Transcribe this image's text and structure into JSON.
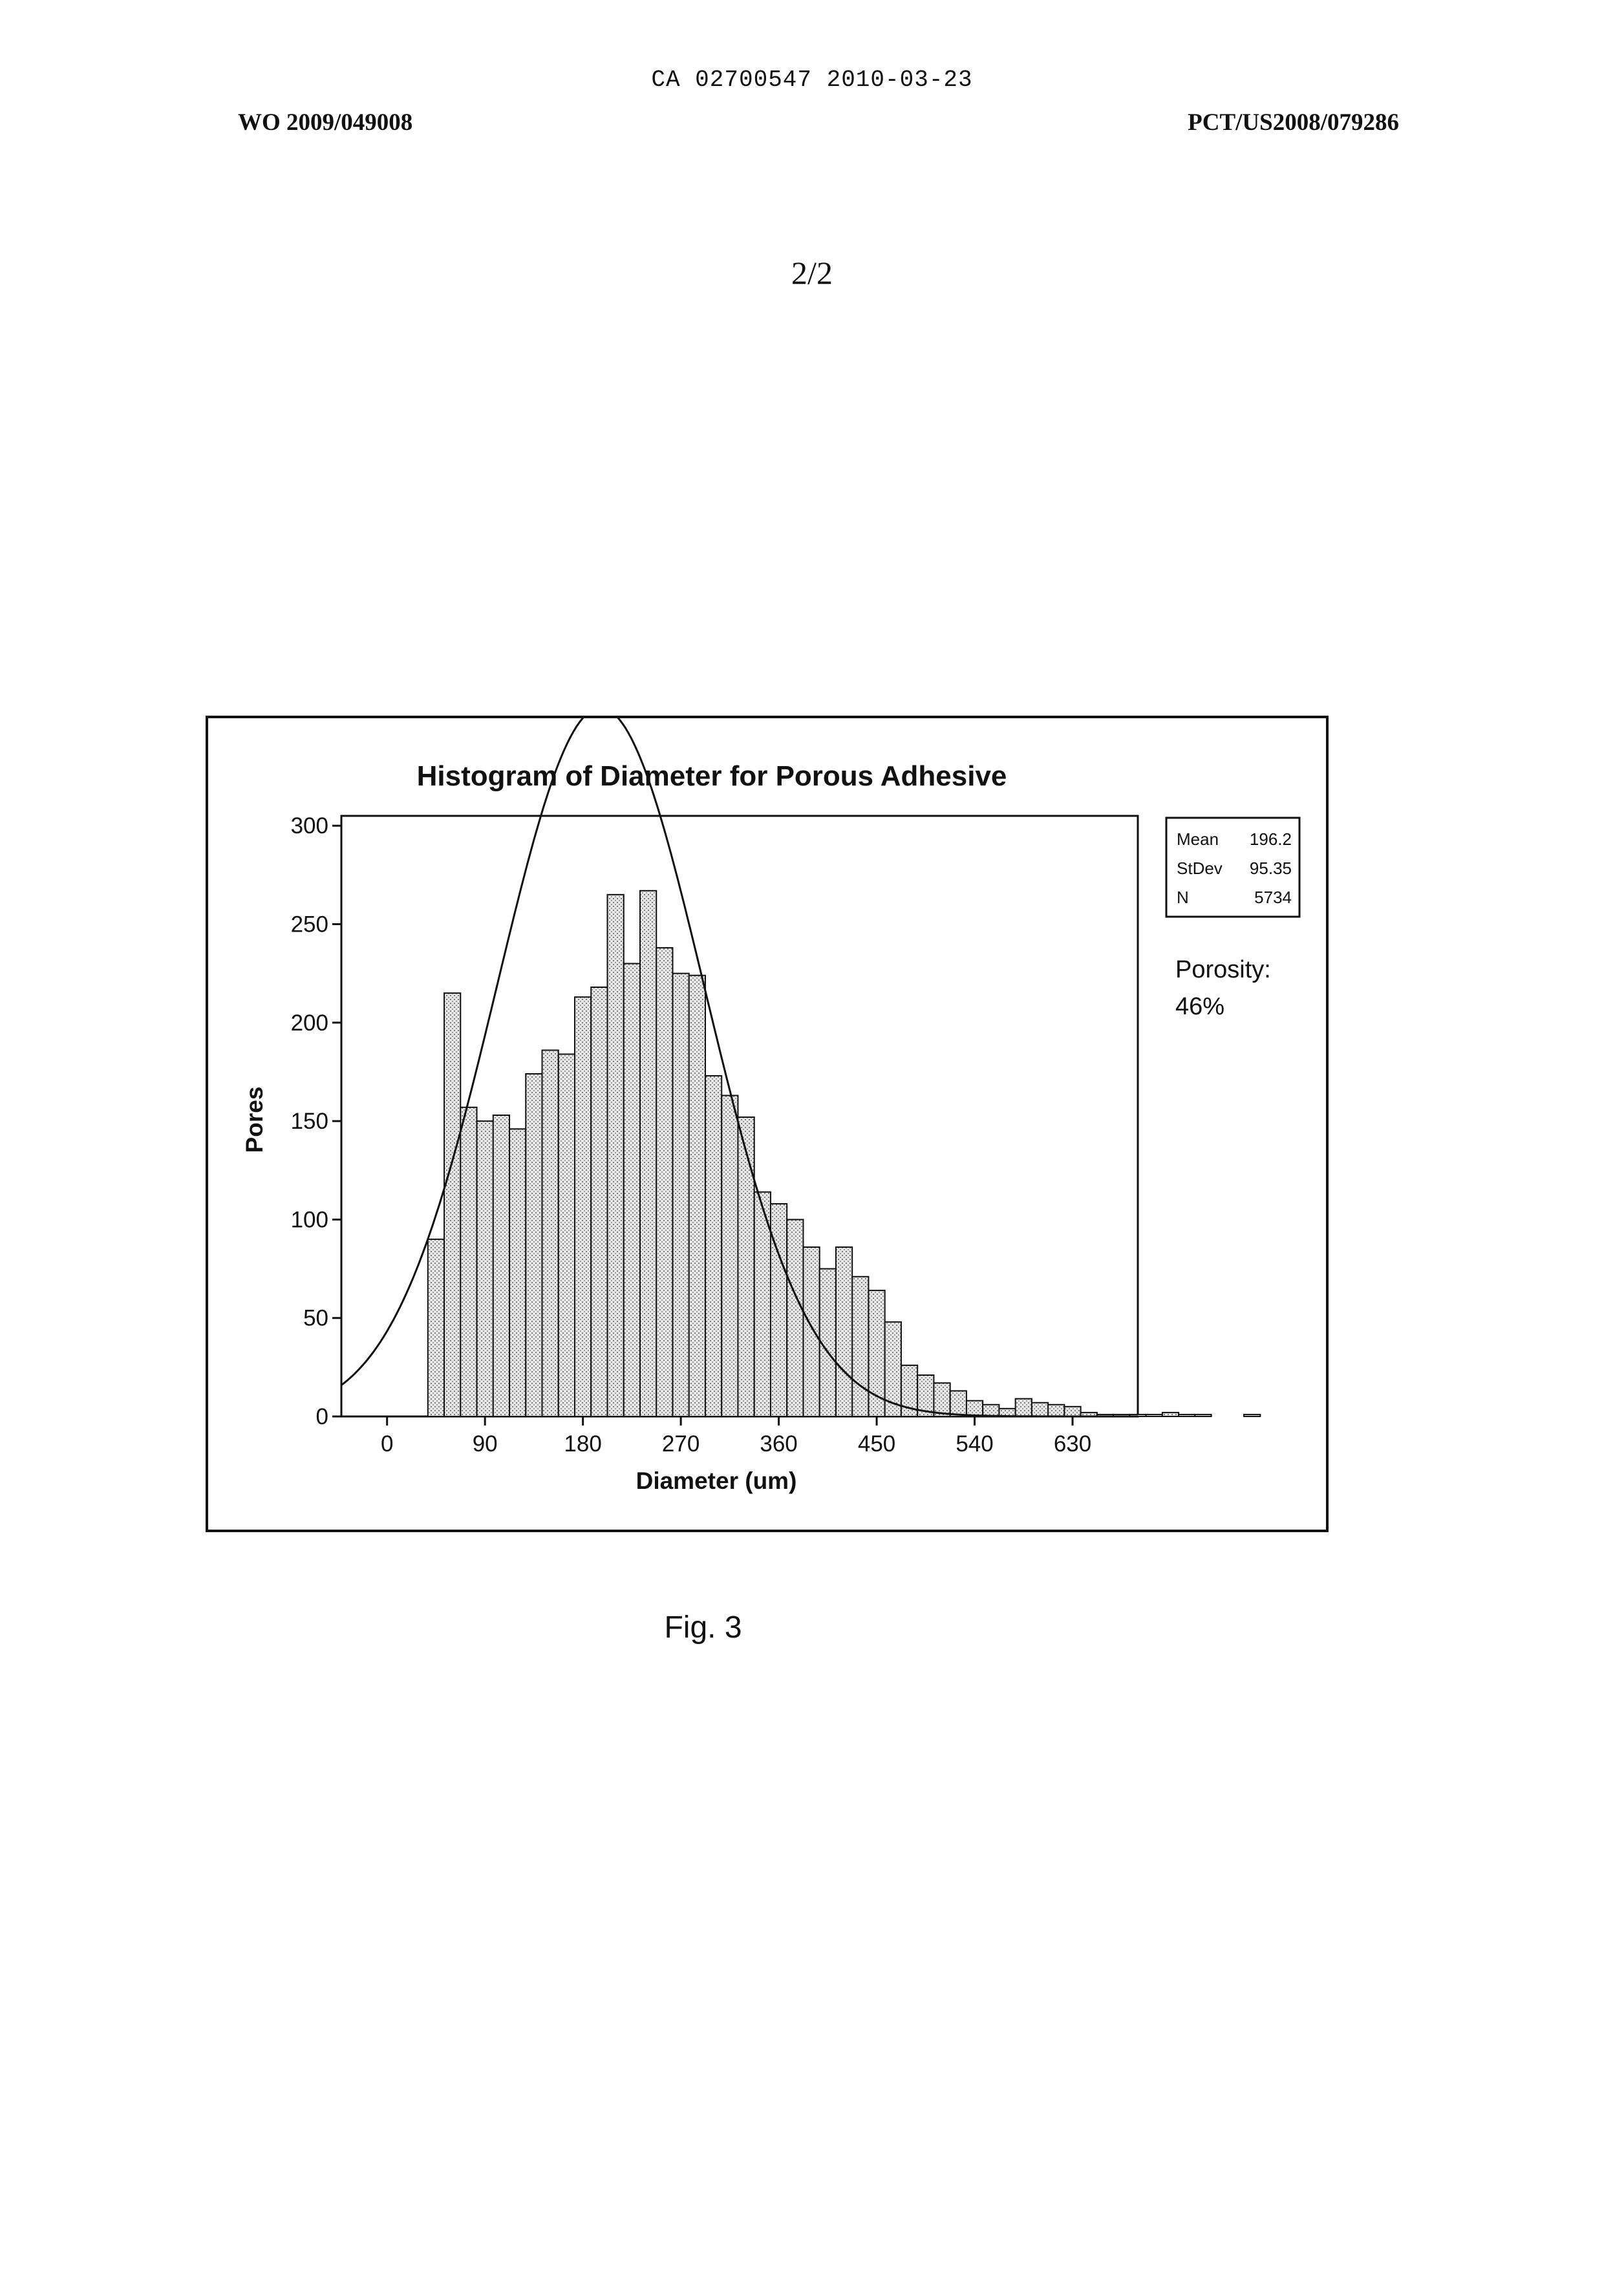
{
  "header": {
    "center_id": "CA 02700547 2010-03-23",
    "left_pub": "WO 2009/049008",
    "right_app": "PCT/US2008/079286"
  },
  "page_number": "2/2",
  "caption": "Fig. 3",
  "chart_data": {
    "type": "bar",
    "title": "Histogram of Diameter for Porous Adhesive",
    "xlabel": "Diameter (um)",
    "ylabel": "Pores",
    "xlim": [
      -42,
      690
    ],
    "ylim": [
      0,
      305
    ],
    "xticks": [
      0,
      90,
      180,
      270,
      360,
      450,
      540,
      630
    ],
    "yticks": [
      0,
      50,
      100,
      150,
      200,
      250,
      300
    ],
    "bin_start": 37.5,
    "bin_width": 15,
    "values": [
      90,
      215,
      157,
      150,
      153,
      146,
      174,
      186,
      184,
      213,
      218,
      265,
      230,
      267,
      238,
      225,
      224,
      173,
      163,
      152,
      114,
      108,
      100,
      86,
      75,
      86,
      71,
      64,
      48,
      26,
      21,
      17,
      13,
      8,
      6,
      4,
      9,
      7,
      6,
      5,
      2,
      1,
      1,
      1,
      1,
      2,
      1,
      1,
      0,
      0,
      1
    ],
    "fit_curve": {
      "type": "normal",
      "mean": 196.2,
      "stdev": 95.35,
      "n": 5734
    },
    "stats_box": {
      "rows": [
        {
          "label": "Mean",
          "value": "196.2"
        },
        {
          "label": "StDev",
          "value": "95.35"
        },
        {
          "label": "N",
          "value": "5734"
        }
      ]
    },
    "annotation": {
      "line1": "Porosity:",
      "line2": "46%"
    }
  }
}
